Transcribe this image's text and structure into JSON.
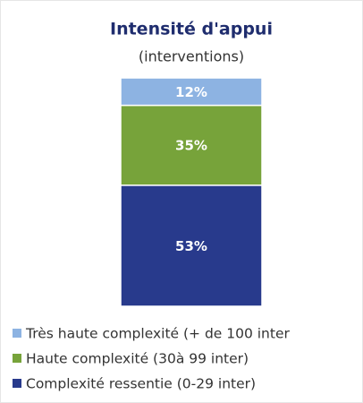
{
  "chart_data": {
    "type": "stacked-bar",
    "title": "Intensité d'appui",
    "subtitle": "(interventions)",
    "ylim": [
      0,
      100
    ],
    "series": [
      {
        "name": "Très haute complexité (+ de 100 inter",
        "color": "#8db3e2",
        "values": [
          12
        ],
        "value_labels": [
          "12%"
        ]
      },
      {
        "name": "Haute complexité (30à 99 inter)",
        "color": "#77a33a",
        "values": [
          35
        ],
        "value_labels": [
          "35%"
        ]
      },
      {
        "name": "Complexité ressentie (0-29 inter)",
        "color": "#283a8c",
        "values": [
          53
        ],
        "value_labels": [
          "53%"
        ]
      }
    ]
  }
}
